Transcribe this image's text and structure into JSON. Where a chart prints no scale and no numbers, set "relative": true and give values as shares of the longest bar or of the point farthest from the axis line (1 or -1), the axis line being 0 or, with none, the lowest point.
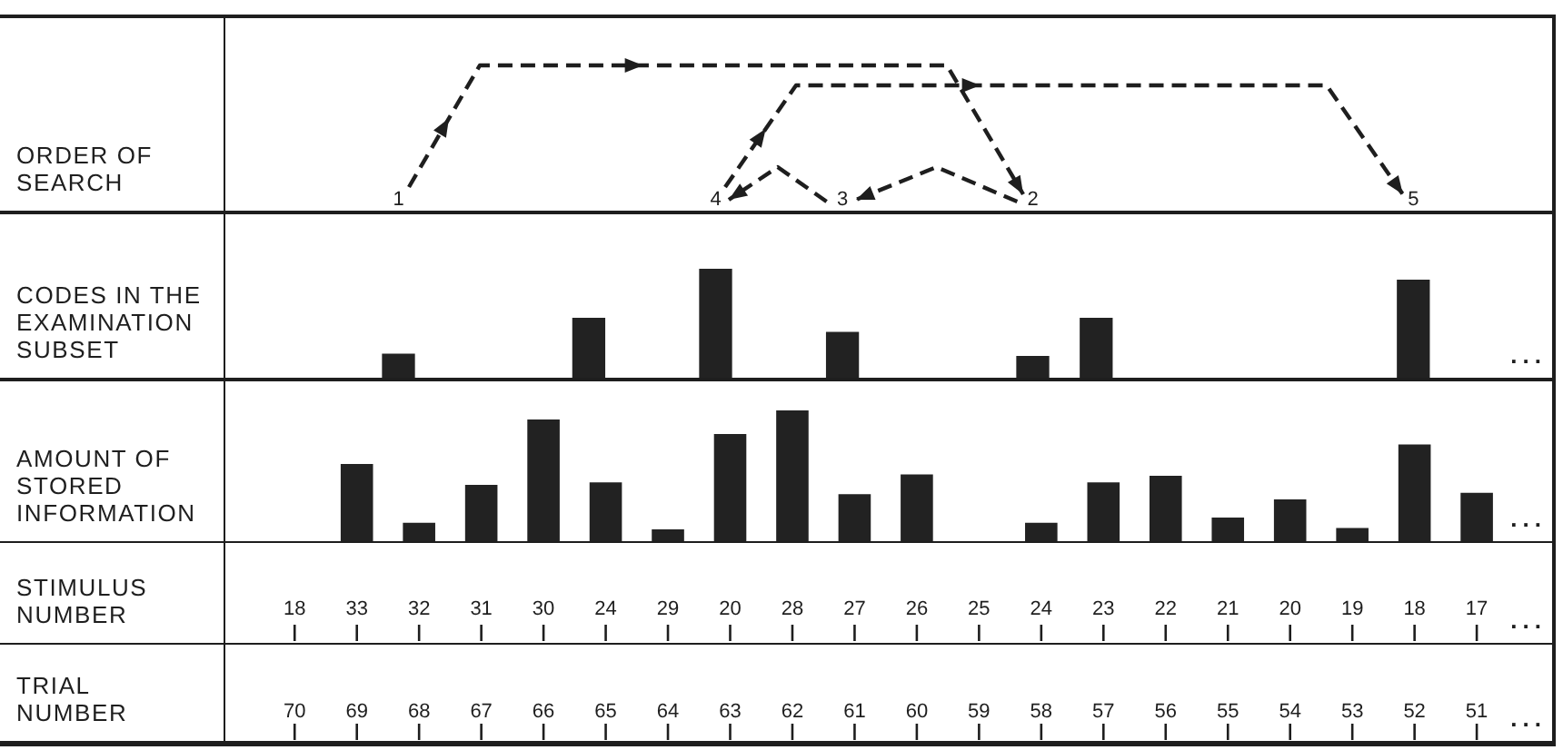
{
  "chart_data": [
    {
      "type": "other",
      "ylabel": "ORDER OF SEARCH",
      "categories": [
        null,
        null,
        null,
        null,
        null,
        null,
        null,
        null,
        null,
        null,
        null,
        null,
        null,
        null,
        null,
        null,
        null,
        null,
        null,
        null
      ],
      "values": [
        null,
        null,
        1,
        null,
        null,
        null,
        null,
        4,
        null,
        3,
        null,
        null,
        2,
        null,
        null,
        null,
        null,
        null,
        5,
        null
      ],
      "data_labels": true
    },
    {
      "type": "bar",
      "ylabel": "CODES IN THE EXAMINATION SUBSET",
      "categories": [
        "18",
        "33",
        "32",
        "31",
        "30",
        "24",
        "29",
        "20",
        "28",
        "27",
        "26",
        "25",
        "24",
        "23",
        "22",
        "21",
        "20",
        "19",
        "18",
        "17"
      ],
      "values": [
        null,
        null,
        0.22,
        null,
        null,
        0.55,
        null,
        1,
        null,
        0.42,
        null,
        null,
        0.2,
        0.55,
        null,
        null,
        null,
        null,
        0.9,
        null
      ],
      "relative": true,
      "color": "#222222",
      "tick_labels": false,
      "annotations": [
        "..."
      ]
    },
    {
      "type": "bar",
      "ylabel": "AMOUNT OF STORED INFORMATION",
      "xlabel": "STIMULUS NUMBER",
      "x2label": "TRIAL NUMBER",
      "categories": [
        "18",
        "33",
        "32",
        "31",
        "30",
        "24",
        "29",
        "20",
        "28",
        "27",
        "26",
        "25",
        "24",
        "23",
        "22",
        "21",
        "20",
        "19",
        "18",
        "17"
      ],
      "values": [
        null,
        0.59,
        0.14,
        0.43,
        0.93,
        0.45,
        0.09,
        0.82,
        1,
        0.36,
        0.51,
        null,
        0.14,
        0.45,
        0.5,
        0.18,
        0.32,
        0.1,
        0.74,
        0.37
      ],
      "relative": true,
      "color": "#222222",
      "x2lim": [
        70,
        51
      ],
      "x2ticks": [
        70,
        69,
        68,
        67,
        66,
        65,
        64,
        63,
        62,
        61,
        60,
        59,
        58,
        57,
        56,
        55,
        54,
        53,
        52,
        51
      ],
      "annotations": [
        "...",
        "...",
        "..."
      ]
    }
  ]
}
